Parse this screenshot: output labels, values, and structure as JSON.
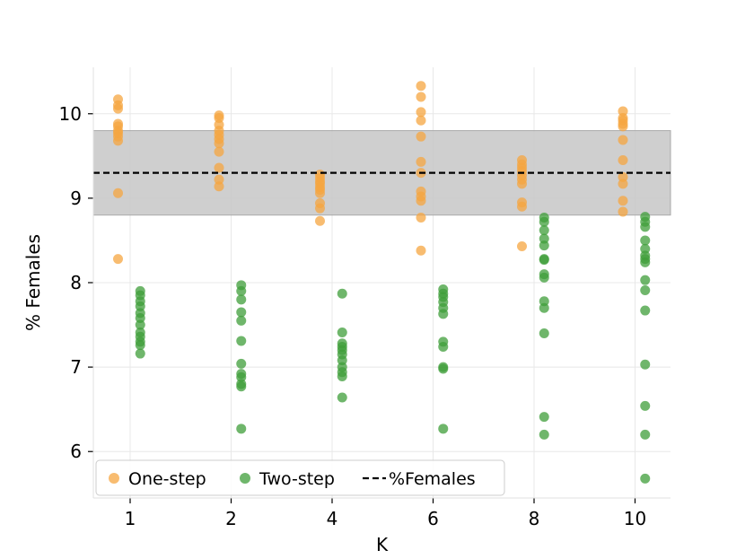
{
  "chart_data": {
    "type": "scatter",
    "xlabel": "K",
    "ylabel": "% Females",
    "categories": [
      "1",
      "2",
      "4",
      "6",
      "8",
      "10"
    ],
    "ylim": [
      5.45,
      10.55
    ],
    "yticks": [
      6,
      7,
      8,
      9,
      10
    ],
    "grid": true,
    "legend_position": "lower-left",
    "band": {
      "low": 8.8,
      "high": 9.8,
      "color": "#c7c7c7"
    },
    "reference_line": {
      "name": "%Females",
      "value": 9.3,
      "color": "#000000",
      "style": "dashed"
    },
    "series": [
      {
        "name": "One-step",
        "color": "#f5a540",
        "offset": -0.12,
        "points": [
          [
            10.17,
            10.1,
            10.06,
            9.88,
            9.85,
            9.8,
            9.77,
            9.73,
            9.68,
            9.06,
            8.28
          ],
          [
            9.98,
            9.95,
            9.87,
            9.8,
            9.75,
            9.7,
            9.65,
            9.55,
            9.36,
            9.22,
            9.14
          ],
          [
            9.28,
            9.24,
            9.2,
            9.17,
            9.13,
            9.1,
            9.06,
            8.94,
            8.88,
            8.73
          ],
          [
            10.33,
            10.2,
            10.02,
            9.92,
            9.73,
            9.43,
            9.3,
            9.08,
            9.02,
            8.97,
            8.77,
            8.38
          ],
          [
            9.45,
            9.4,
            9.36,
            9.32,
            9.27,
            9.22,
            9.17,
            8.95,
            8.9,
            8.43
          ],
          [
            10.03,
            9.95,
            9.92,
            9.88,
            9.85,
            9.69,
            9.45,
            9.25,
            9.17,
            8.97,
            8.84
          ]
        ]
      },
      {
        "name": "Two-step",
        "color": "#3f9e3a",
        "offset": 0.1,
        "points": [
          [
            7.9,
            7.85,
            7.78,
            7.72,
            7.64,
            7.58,
            7.5,
            7.41,
            7.36,
            7.3,
            7.26,
            7.16
          ],
          [
            7.97,
            7.9,
            7.8,
            7.65,
            7.55,
            7.31,
            7.04,
            6.92,
            6.88,
            6.8,
            6.77,
            6.27
          ],
          [
            7.87,
            7.41,
            7.28,
            7.24,
            7.2,
            7.15,
            7.08,
            7.0,
            6.94,
            6.89,
            6.64
          ],
          [
            7.92,
            7.87,
            7.83,
            7.77,
            7.7,
            7.63,
            7.3,
            7.24,
            7.0,
            6.98,
            6.27
          ],
          [
            8.77,
            8.72,
            8.62,
            8.52,
            8.44,
            8.28,
            8.27,
            8.1,
            8.06,
            7.78,
            7.7,
            7.4,
            6.41,
            6.2
          ],
          [
            8.78,
            8.72,
            8.66,
            8.5,
            8.4,
            8.32,
            8.28,
            8.24,
            8.03,
            7.91,
            7.67,
            7.03,
            6.54,
            6.2,
            5.68
          ]
        ]
      }
    ]
  }
}
